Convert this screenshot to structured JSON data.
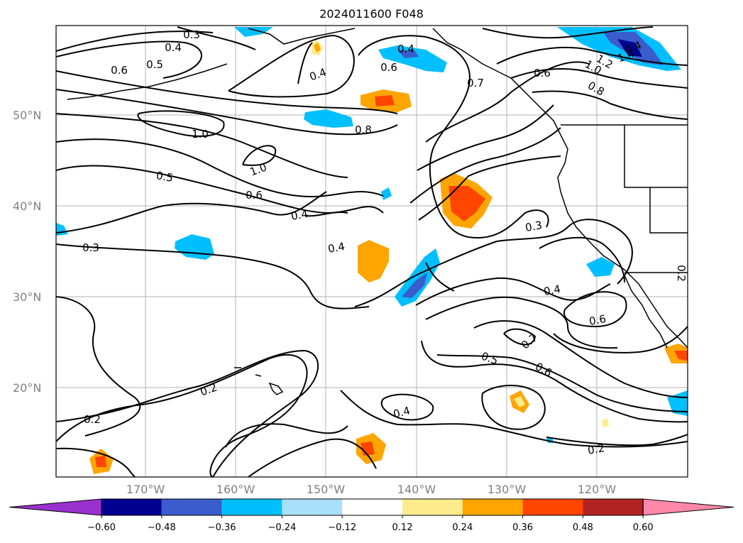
{
  "title": "2024011600 F048",
  "map": {
    "lat_labels": [
      "50°N",
      "40°N",
      "30°N",
      "20°N"
    ],
    "lon_labels": [
      "170°W",
      "160°W",
      "150°W",
      "140°W",
      "130°W",
      "120°W"
    ],
    "contour_labels": [
      "0.3",
      "0.4",
      "0.5",
      "0.6",
      "1.0",
      "0.4",
      "0.4",
      "0.6",
      "0.4",
      "1.4",
      "1.2",
      "1.0",
      "0.8",
      "0.6",
      "0.7",
      "1.0",
      "0.8",
      "0.5",
      "0.6",
      "0.4",
      "0.3",
      "0.4",
      "0.3",
      "0.4",
      "0.6",
      "0.7",
      "0.5",
      "0.6",
      "0.2",
      "0.2",
      "0.4",
      "0.2",
      "0.2"
    ],
    "colors": {
      "contour": "#000000",
      "coast": "#000000",
      "grid": "#b0b0b0"
    }
  },
  "colorbar": {
    "ticks": [
      "−0.60",
      "−0.48",
      "−0.36",
      "−0.24",
      "−0.12",
      "0.12",
      "0.24",
      "0.36",
      "0.48",
      "0.60"
    ],
    "bin_colors": [
      "#9a31cf",
      "#000091",
      "#3a5ccc",
      "#00bfff",
      "#a8e0fb",
      "#ffffff",
      "#fdec8c",
      "#ffa500",
      "#ff4500",
      "#b22222",
      "#ff88aa"
    ]
  }
}
